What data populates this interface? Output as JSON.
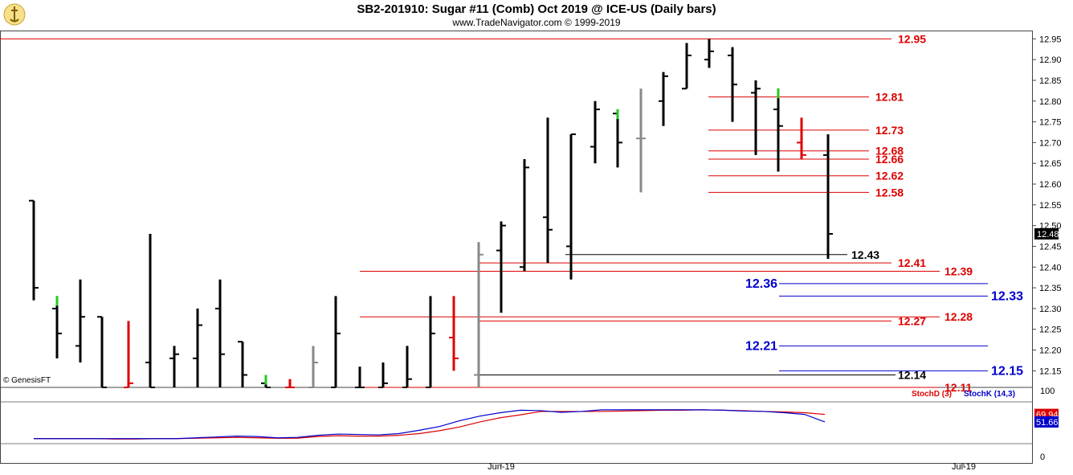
{
  "header": {
    "title": "SB2-201910:  Sugar #11 (Comb) Oct 2019 @ ICE-US  (Daily bars)",
    "subtitle": "www.TradeNavigator.com © 1999-2019",
    "credit": "© GenesisFT"
  },
  "colors": {
    "up_bar": "#000000",
    "red_line": "#dd0000",
    "blue_line": "#0000cc",
    "grey_bar": "#888888",
    "green_mark": "#22cc22",
    "stoch_d": "#dd0000",
    "stoch_k": "#0000cc"
  },
  "chart_data": [
    {
      "type": "ohlc",
      "title": "SB2-201910:  Sugar #11 (Comb) Oct 2019 @ ICE-US  (Daily bars)",
      "ylim": [
        12.11,
        12.97
      ],
      "y_ticks": [
        "12.95",
        "12.90",
        "12.85",
        "12.80",
        "12.75",
        "12.70",
        "12.65",
        "12.60",
        "12.55",
        "12.50",
        "12.45",
        "12.40",
        "12.35",
        "12.30",
        "12.25",
        "12.20",
        "12.15"
      ],
      "x_ticks": [
        "Jun-19",
        "Jul-19"
      ],
      "last_price_label": "12.48",
      "bars": [
        {
          "o": 12.56,
          "h": 12.56,
          "l": 12.32,
          "c": 12.35,
          "color": "black"
        },
        {
          "o": 12.3,
          "h": 12.33,
          "l": 12.18,
          "c": 12.24,
          "color": "black",
          "mark": "green"
        },
        {
          "o": 12.21,
          "h": 12.37,
          "l": 12.17,
          "c": 12.28,
          "color": "black"
        },
        {
          "o": 12.28,
          "h": 12.28,
          "l": 12.11,
          "c": 12.11,
          "color": "black"
        },
        {
          "o": 12.11,
          "h": 12.27,
          "l": 12.11,
          "c": 12.12,
          "color": "red"
        },
        {
          "o": 12.17,
          "h": 12.48,
          "l": 12.11,
          "c": 12.11,
          "color": "black"
        },
        {
          "o": 12.18,
          "h": 12.21,
          "l": 12.11,
          "c": 12.19,
          "color": "black"
        },
        {
          "o": 12.18,
          "h": 12.3,
          "l": 12.11,
          "c": 12.26,
          "color": "black"
        },
        {
          "o": 12.3,
          "h": 12.37,
          "l": 12.11,
          "c": 12.19,
          "color": "black"
        },
        {
          "o": 12.22,
          "h": 12.22,
          "l": 12.11,
          "c": 12.14,
          "color": "black"
        },
        {
          "o": 12.12,
          "h": 12.14,
          "l": 12.11,
          "c": 12.11,
          "color": "black",
          "mark": "green"
        },
        {
          "o": 12.11,
          "h": 12.13,
          "l": 12.11,
          "c": 12.11,
          "color": "red"
        },
        {
          "o": 12.11,
          "h": 12.21,
          "l": 12.11,
          "c": 12.17,
          "color": "grey"
        },
        {
          "o": 12.11,
          "h": 12.33,
          "l": 12.11,
          "c": 12.24,
          "color": "black"
        },
        {
          "o": 12.11,
          "h": 12.16,
          "l": 12.11,
          "c": 12.11,
          "color": "black"
        },
        {
          "o": 12.11,
          "h": 12.17,
          "l": 12.11,
          "c": 12.12,
          "color": "black"
        },
        {
          "o": 12.11,
          "h": 12.21,
          "l": 12.11,
          "c": 12.13,
          "color": "black"
        },
        {
          "o": 12.11,
          "h": 12.33,
          "l": 12.11,
          "c": 12.24,
          "color": "black"
        },
        {
          "o": 12.23,
          "h": 12.33,
          "l": 12.15,
          "c": 12.18,
          "color": "red"
        },
        {
          "o": 12.14,
          "h": 12.46,
          "l": 12.11,
          "c": 12.43,
          "color": "grey"
        },
        {
          "o": 12.44,
          "h": 12.51,
          "l": 12.29,
          "c": 12.5,
          "color": "black"
        },
        {
          "o": 12.4,
          "h": 12.66,
          "l": 12.39,
          "c": 12.64,
          "color": "black"
        },
        {
          "o": 12.52,
          "h": 12.76,
          "l": 12.41,
          "c": 12.49,
          "color": "black"
        },
        {
          "o": 12.45,
          "h": 12.72,
          "l": 12.37,
          "c": 12.72,
          "color": "black"
        },
        {
          "o": 12.69,
          "h": 12.8,
          "l": 12.65,
          "c": 12.78,
          "color": "black"
        },
        {
          "o": 12.77,
          "h": 12.78,
          "l": 12.64,
          "c": 12.7,
          "color": "black",
          "mark": "green"
        },
        {
          "o": 12.71,
          "h": 12.83,
          "l": 12.58,
          "c": 12.71,
          "color": "grey"
        },
        {
          "o": 12.8,
          "h": 12.87,
          "l": 12.74,
          "c": 12.86,
          "color": "black"
        },
        {
          "o": 12.83,
          "h": 12.94,
          "l": 12.83,
          "c": 12.91,
          "color": "black"
        },
        {
          "o": 12.9,
          "h": 12.95,
          "l": 12.88,
          "c": 12.92,
          "color": "black"
        },
        {
          "o": 12.91,
          "h": 12.93,
          "l": 12.75,
          "c": 12.84,
          "color": "black"
        },
        {
          "o": 12.82,
          "h": 12.85,
          "l": 12.67,
          "c": 12.83,
          "color": "black"
        },
        {
          "o": 12.78,
          "h": 12.83,
          "l": 12.63,
          "c": 12.74,
          "color": "black",
          "mark": "green"
        },
        {
          "o": 12.7,
          "h": 12.76,
          "l": 12.66,
          "c": 12.67,
          "color": "red"
        },
        {
          "o": 12.67,
          "h": 12.72,
          "l": 12.42,
          "c": 12.48,
          "color": "black"
        }
      ],
      "levels": [
        {
          "value": 12.95,
          "label": "12.95",
          "color": "red"
        },
        {
          "value": 12.81,
          "label": "12.81",
          "color": "red"
        },
        {
          "value": 12.73,
          "label": "12.73",
          "color": "red"
        },
        {
          "value": 12.68,
          "label": "12.68",
          "color": "red"
        },
        {
          "value": 12.66,
          "label": "12.66",
          "color": "red"
        },
        {
          "value": 12.62,
          "label": "12.62",
          "color": "red"
        },
        {
          "value": 12.58,
          "label": "12.58",
          "color": "red"
        },
        {
          "value": 12.43,
          "label": "12.43",
          "color": "black"
        },
        {
          "value": 12.41,
          "label": "12.41",
          "color": "red"
        },
        {
          "value": 12.39,
          "label": "12.39",
          "color": "red"
        },
        {
          "value": 12.36,
          "label": "12.36",
          "color": "blue"
        },
        {
          "value": 12.33,
          "label": "12.33",
          "color": "blue"
        },
        {
          "value": 12.28,
          "label": "12.28",
          "color": "red"
        },
        {
          "value": 12.27,
          "label": "12.27",
          "color": "red"
        },
        {
          "value": 12.21,
          "label": "12.21",
          "color": "blue"
        },
        {
          "value": 12.15,
          "label": "12.15",
          "color": "blue"
        },
        {
          "value": 12.14,
          "label": "12.14",
          "color": "black"
        },
        {
          "value": 12.11,
          "label": "12.11",
          "color": "red"
        }
      ]
    },
    {
      "type": "line",
      "title": "",
      "ylim": [
        0,
        100
      ],
      "y_ticks": [
        "100",
        "0"
      ],
      "series": [
        {
          "name": "StochD (3)",
          "color": "red",
          "last_label": "69.94",
          "values": [
            12,
            12,
            12,
            12,
            11,
            11,
            12,
            12,
            13,
            14,
            15,
            14,
            13,
            13,
            17,
            19,
            18,
            18,
            20,
            24,
            31,
            40,
            52,
            62,
            69,
            77,
            77,
            77,
            77,
            78,
            79,
            80,
            80,
            81,
            80,
            79,
            77,
            76,
            74,
            70
          ]
        },
        {
          "name": "StochK (14,3)",
          "color": "blue",
          "last_label": "51.66",
          "values": [
            12,
            12,
            12,
            12,
            12,
            12,
            12,
            12,
            14,
            16,
            18,
            17,
            14,
            15,
            20,
            23,
            22,
            21,
            24,
            32,
            41,
            55,
            66,
            74,
            80,
            79,
            75,
            77,
            81,
            81,
            81,
            81,
            81,
            81,
            80,
            78,
            77,
            74,
            70,
            52
          ]
        }
      ]
    }
  ]
}
